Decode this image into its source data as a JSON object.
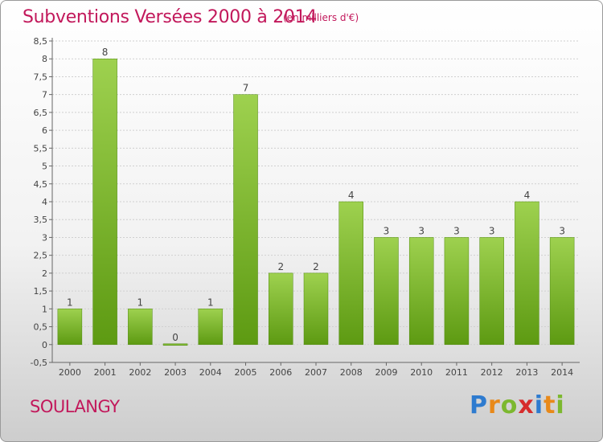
{
  "header": {
    "title": "Subventions Versées 2000 à 2014",
    "unit_note": "(en milliers d'€)"
  },
  "footer": {
    "commune": "SOULANGY",
    "brand_letters": [
      "P",
      "r",
      "o",
      "x",
      "i",
      "t",
      "i"
    ],
    "brand_colors": [
      "#2e7bcf",
      "#e8891a",
      "#7cb82f",
      "#d62c2c",
      "#2e7bcf",
      "#e8891a",
      "#7cb82f"
    ]
  },
  "chart_data": {
    "type": "bar",
    "categories": [
      "2000",
      "2001",
      "2002",
      "2003",
      "2004",
      "2005",
      "2006",
      "2007",
      "2008",
      "2009",
      "2010",
      "2011",
      "2012",
      "2013",
      "2014"
    ],
    "values": [
      1,
      8,
      1,
      0,
      1,
      7,
      2,
      2,
      4,
      3,
      3,
      3,
      3,
      4,
      3
    ],
    "data_labels": [
      "1",
      "8",
      "1",
      "0",
      "1",
      "7",
      "2",
      "2",
      "4",
      "3",
      "3",
      "3",
      "3",
      "4",
      "3"
    ],
    "yticks": [
      -0.5,
      0,
      0.5,
      1,
      1.5,
      2,
      2.5,
      3,
      3.5,
      4,
      4.5,
      5,
      5.5,
      6,
      6.5,
      7,
      7.5,
      8,
      8.5
    ],
    "ytick_labels": [
      "-0,5",
      "0",
      "0,5",
      "1",
      "1,5",
      "2",
      "2,5",
      "3",
      "3,5",
      "4",
      "4,5",
      "5",
      "5,5",
      "6",
      "6,5",
      "7",
      "7,5",
      "8",
      "8,5"
    ],
    "ylim": [
      -0.5,
      8.5
    ],
    "grid": true,
    "bar_color_top": "#9ed14f",
    "bar_color_bottom": "#5d9a12"
  }
}
